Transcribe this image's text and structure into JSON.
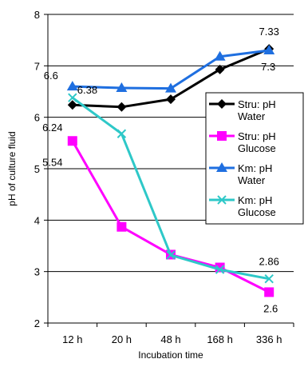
{
  "chart_data": {
    "type": "line",
    "title": "",
    "xlabel": "Incubation time",
    "ylabel": "pH of culture fluid",
    "categories": [
      "12 h",
      "20 h",
      "48 h",
      "168 h",
      "336 h"
    ],
    "ylim": [
      2,
      8
    ],
    "yticks": [
      "2",
      "3",
      "4",
      "5",
      "6",
      "7",
      "8"
    ],
    "grid": "horizontal",
    "legend_position": "right",
    "series": [
      {
        "name": "Stru: pH Water",
        "legend_lines": [
          "Stru: pH",
          "Water"
        ],
        "values": [
          6.24,
          6.2,
          6.35,
          6.93,
          7.33
        ],
        "color": "#000000",
        "marker": "diamond"
      },
      {
        "name": "Stru: pH Glucose",
        "legend_lines": [
          "Stru: pH",
          "Glucose"
        ],
        "values": [
          5.54,
          3.87,
          3.33,
          3.08,
          2.6
        ],
        "color": "#ff00ff",
        "marker": "square"
      },
      {
        "name": "Km: pH Water",
        "legend_lines": [
          "Km: pH",
          "Water"
        ],
        "values": [
          6.6,
          6.57,
          6.56,
          7.18,
          7.3
        ],
        "color": "#1f6fe0",
        "marker": "triangle"
      },
      {
        "name": "Km: pH Glucose",
        "legend_lines": [
          "Km: pH",
          "Glucose"
        ],
        "values": [
          6.38,
          5.68,
          3.32,
          3.04,
          2.86
        ],
        "color": "#2ec8c8",
        "marker": "x"
      }
    ],
    "annotations": [
      {
        "text": "6.6",
        "series": 2,
        "index": 0
      },
      {
        "text": "6.38",
        "series": 3,
        "index": 0
      },
      {
        "text": "6.24",
        "series": 0,
        "index": 0
      },
      {
        "text": "5.54",
        "series": 1,
        "index": 0
      },
      {
        "text": "7.33",
        "series": 0,
        "index": 4
      },
      {
        "text": "7.3",
        "series": 2,
        "index": 4
      },
      {
        "text": "2.86",
        "series": 3,
        "index": 4
      },
      {
        "text": "2.6",
        "series": 1,
        "index": 4
      }
    ]
  }
}
